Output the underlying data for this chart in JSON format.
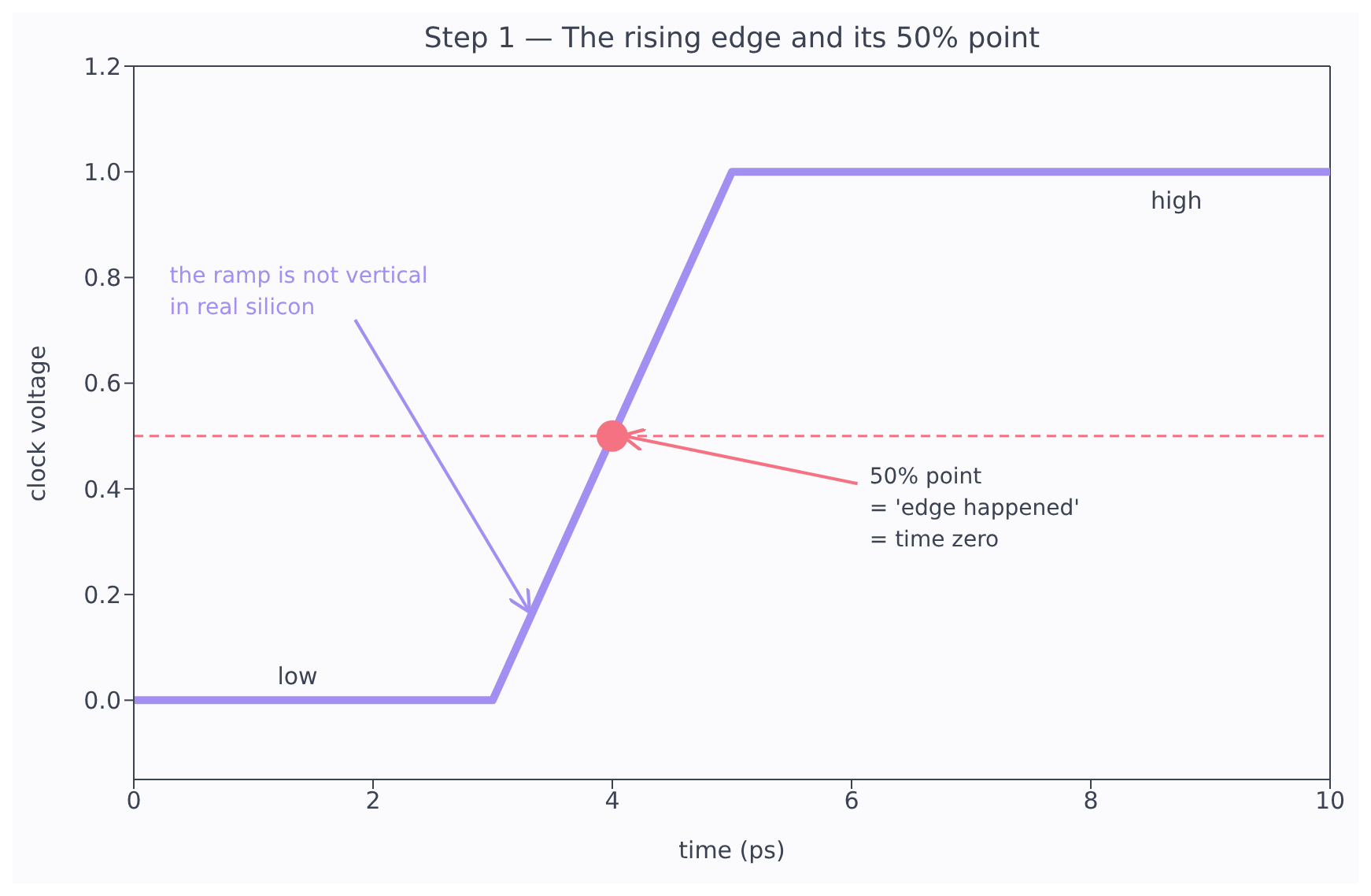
{
  "chart_data": {
    "type": "line",
    "title": "Step 1 — The rising edge and its 50% point",
    "xlabel": "time  (ps)",
    "ylabel": "clock voltage",
    "series": [
      {
        "x": [
          0,
          3,
          5,
          10
        ],
        "values": [
          0,
          0,
          1,
          1
        ],
        "color": "#a38ef2",
        "marker": "none"
      },
      {
        "type": "scatter",
        "x": [
          4
        ],
        "values": [
          0.5
        ],
        "color": "#f47282",
        "marker": "circle"
      }
    ],
    "xlim": [
      0,
      10
    ],
    "xticks": [
      0,
      2,
      4,
      6,
      8,
      10
    ],
    "ylim": [
      -0.15,
      1.2
    ],
    "yticks": [
      {
        "value": 0,
        "label": "0.0"
      },
      {
        "value": 0.2,
        "label": "0.2"
      },
      {
        "value": 0.4,
        "label": "0.4"
      },
      {
        "value": 0.6,
        "label": "0.6"
      },
      {
        "value": 0.8,
        "label": "0.8"
      },
      {
        "value": 1,
        "label": "1.0"
      },
      {
        "value": 1.2,
        "label": "1.2"
      }
    ],
    "ref_lines": [
      {
        "axis": "y",
        "value": 0.5,
        "color": "#f47282",
        "line_style": "dashed"
      }
    ],
    "annotations": [
      {
        "text": "the ramp is not vertical\nin real silicon",
        "x": 3.3,
        "y": 0.17
      },
      {
        "text": "50% point\n= 'edge happened'\n= time zero",
        "x": 4.1,
        "y": 0.5
      },
      "low",
      "high"
    ],
    "grid": false,
    "line_style": "solid"
  }
}
